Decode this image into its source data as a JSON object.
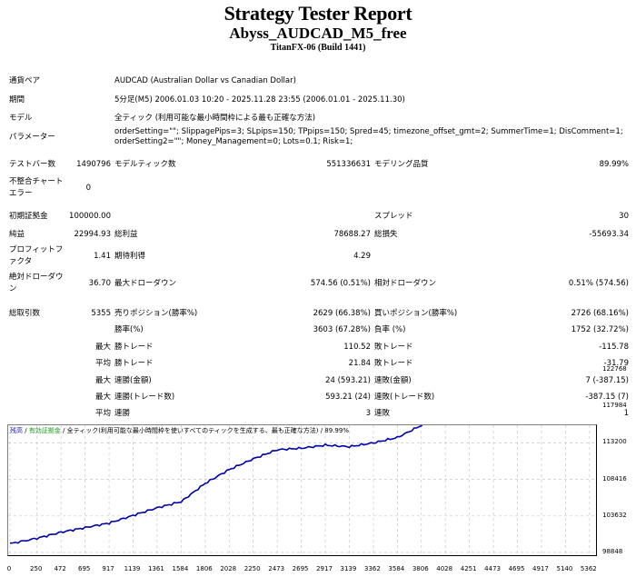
{
  "header": {
    "title": "Strategy Tester Report",
    "expert": "Abyss_AUDCAD_M5_free",
    "server": "TitanFX-06 (Build 1441)"
  },
  "info": {
    "symbol_label": "通貨ペア",
    "symbol_value": "AUDCAD (Australian Dollar vs Canadian Dollar)",
    "period_label": "期間",
    "period_value": "5分足(M5) 2006.01.03 10:20 - 2025.11.28 23:55 (2006.01.01 - 2025.11.30)",
    "model_label": "モデル",
    "model_value": "全ティック (利用可能な最小時間枠による最も正確な方法)",
    "params_label": "パラメーター",
    "params_line1": "orderSetting=\"\"; SlippagePips=3; SLpips=150; TPpips=150; Spred=45; timezone_offset_gmt=2; SummerTime=1; DisComment=1;",
    "params_line2": "orderSetting2=\"\"; Money_Management=0; Lots=0.1; Risk=1;"
  },
  "stats": {
    "bars_label": "テストバー数",
    "bars_value": "1490796",
    "ticks_label": "モデルティック数",
    "ticks_value": "551336631",
    "quality_label": "モデリング品質",
    "quality_value": "89.99%",
    "mismatch_label_1": "不整合チャート",
    "mismatch_label_2": "エラー",
    "mismatch_value": "0",
    "deposit_label": "初期証拠金",
    "deposit_value": "100000.00",
    "spread_label": "スプレッド",
    "spread_value": "30",
    "net_label": "純益",
    "net_value": "22994.93",
    "gross_profit_label": "総利益",
    "gross_profit_value": "78688.27",
    "gross_loss_label": "総損失",
    "gross_loss_value": "-55693.34",
    "pf_label_1": "プロフィットフ",
    "pf_label_2": "ァクタ",
    "pf_value": "1.41",
    "expected_label": "期待利得",
    "expected_value": "4.29",
    "abs_dd_label_1": "絶対ドローダウ",
    "abs_dd_label_2": "ン",
    "abs_dd_value": "36.70",
    "max_dd_label": "最大ドローダウン",
    "max_dd_value": "574.56 (0.51%)",
    "rel_dd_label": "相対ドローダウン",
    "rel_dd_value": "0.51% (574.56)",
    "trades_label": "総取引数",
    "trades_value": "5355",
    "short_label": "売りポジション(勝率%)",
    "short_value": "2629 (66.38%)",
    "long_label": "買いポジション(勝率%)",
    "long_value": "2726 (68.16%)",
    "win_label": "勝率(%)",
    "win_value": "3603 (67.28%)",
    "loss_label": "負率 (%)",
    "loss_value": "1752 (32.72%)",
    "largest_prefix": "最大",
    "largest_win_label": "勝トレード",
    "largest_win_value": "110.52",
    "largest_loss_label": "敗トレード",
    "largest_loss_value": "-115.78",
    "average_prefix": "平均",
    "avg_win_label": "勝トレード",
    "avg_win_value": "21.84",
    "avg_loss_label": "敗トレード",
    "avg_loss_value": "-31.79",
    "max_prefix_1": "最大",
    "max_cons_wins_label": "連勝(金額)",
    "max_cons_wins_value": "24 (593.21)",
    "max_cons_losses_label": "連敗(金額)",
    "max_cons_losses_value": "7 (-387.15)",
    "max_prefix_2": "最大",
    "max_cons_profit_label": "連勝(トレード数)",
    "max_cons_profit_value": "593.21 (24)",
    "max_cons_loss_label": "連敗(トレード数)",
    "max_cons_loss_value": "-387.15 (7)",
    "avg_prefix_2": "平均",
    "avg_cons_wins_label": "連勝",
    "avg_cons_wins_value": "3",
    "avg_cons_losses_label": "連敗",
    "avg_cons_losses_value": "1"
  },
  "chart_legend": {
    "balance": "残高",
    "sep1": " / ",
    "equity": "有効証拠金",
    "sep2": " / ",
    "model": "全ティック(利用可能な最小時間枠を使いすべてのティックを生成する、最も正確な方法)",
    "sep3": " / ",
    "quality": "89.99%"
  },
  "colors": {
    "balance_line": "#0000aa",
    "legend_balance": "#1a1ab0",
    "legend_equity": "#1a9e1a",
    "grid": "#c8c8c8"
  },
  "chart_data": {
    "type": "line",
    "title": "",
    "xlabel": "",
    "ylabel": "",
    "legend": [
      "残高",
      "有効証拠金"
    ],
    "x_ticks": [
      "0",
      "250",
      "472",
      "695",
      "917",
      "1139",
      "1361",
      "1584",
      "1806",
      "2028",
      "2250",
      "2473",
      "2695",
      "2917",
      "3139",
      "3362",
      "3584",
      "3806",
      "4028",
      "4251",
      "4473",
      "4695",
      "4917",
      "5140",
      "5362"
    ],
    "y_ticks": [
      "122768",
      "117984",
      "113200",
      "108416",
      "103632",
      "98848"
    ],
    "ylim": [
      98848,
      124000
    ],
    "grid": true,
    "series": [
      {
        "name": "残高",
        "x": [
          0,
          250,
          472,
          695,
          917,
          1139,
          1361,
          1584,
          1806,
          2028,
          2250,
          2473,
          2695,
          2917,
          3139,
          3362,
          3584,
          3806,
          4028,
          4251,
          4473,
          4695,
          4917,
          5140,
          5355
        ],
        "values": [
          100000,
          100700,
          101500,
          102100,
          102700,
          103700,
          104700,
          105500,
          107900,
          109700,
          111100,
          112300,
          112500,
          112900,
          112700,
          113200,
          113900,
          115500,
          117500,
          117800,
          118200,
          119000,
          119600,
          120600,
          122994
        ]
      }
    ]
  }
}
